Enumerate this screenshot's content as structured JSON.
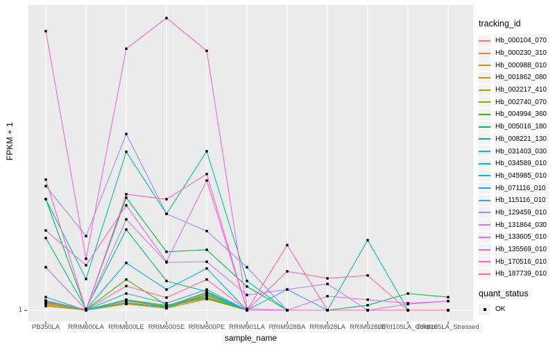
{
  "chart_data": {
    "type": "line",
    "xlabel": "sample_name",
    "ylabel": "FPKM + 1",
    "y_tick_labels": [
      "1"
    ],
    "y_axis_note": "only the value 1 is labeled; values below are relative heights 0-100 above the 1-line",
    "ylim_relative": [
      0,
      100
    ],
    "grid": "light gray panel with white gridlines (vertical per sample, horizontal at 1)",
    "legend_position": "right",
    "panel_background": "#EBEBEB",
    "gridline_color": "#FFFFFF",
    "marker": "small black square",
    "categories": [
      "PB350LA",
      "RRIM600LA",
      "RRIM600LE",
      "RRIM600SE",
      "RRIM600PE",
      "RRIM901LA",
      "RRIM928BA",
      "RRIM928LA",
      "RRIM928LE",
      "RRII105LA_Control",
      "RRII105LA_Stressed"
    ],
    "legend": {
      "tracking_title": "tracking_id",
      "quant_title": "quant_status",
      "quant_items": [
        "OK"
      ]
    },
    "series": [
      {
        "name": "Hb_000104_070",
        "color": "#F8766D",
        "values": [
          2.4,
          0,
          3.1,
          1.2,
          4.0,
          0,
          0,
          0,
          0,
          0,
          0
        ]
      },
      {
        "name": "Hb_000230_310",
        "color": "#E88526",
        "values": [
          2.6,
          0.2,
          2.6,
          1.0,
          5.5,
          0,
          0,
          0,
          0,
          0,
          0
        ]
      },
      {
        "name": "Hb_000988_010",
        "color": "#D89000",
        "values": [
          1.7,
          0,
          2.1,
          0.7,
          5.0,
          0,
          0,
          0,
          0,
          0,
          0
        ]
      },
      {
        "name": "Hb_001862_080",
        "color": "#C09B00",
        "values": [
          2.1,
          0.2,
          3.3,
          1.4,
          6.2,
          0,
          0,
          0,
          0,
          0,
          0
        ]
      },
      {
        "name": "Hb_002217_410",
        "color": "#A3A500",
        "values": [
          1.4,
          0,
          2.4,
          0.7,
          3.8,
          0,
          0,
          0,
          0,
          0,
          0
        ]
      },
      {
        "name": "Hb_002740_070",
        "color": "#7CAE00",
        "values": [
          3.1,
          0.2,
          3.6,
          1.7,
          4.5,
          0,
          0,
          0,
          0,
          0,
          0
        ]
      },
      {
        "name": "Hb_004994_360",
        "color": "#39B600",
        "values": [
          3.1,
          0.2,
          10.5,
          1.7,
          4.3,
          0,
          0,
          0,
          0,
          0,
          0
        ]
      },
      {
        "name": "Hb_005016_180",
        "color": "#00BB4E",
        "values": [
          38.0,
          0.2,
          38.5,
          20.0,
          20.7,
          8.1,
          0,
          0,
          1.7,
          5.7,
          4.5
        ]
      },
      {
        "name": "Hb_008221_130",
        "color": "#00BF7D",
        "values": [
          24.7,
          0.5,
          27.6,
          10.0,
          6.4,
          0,
          0,
          0,
          0,
          0,
          0
        ]
      },
      {
        "name": "Hb_031403_030",
        "color": "#00C1A3",
        "values": [
          38.0,
          10.7,
          54.2,
          33.0,
          54.4,
          10.0,
          0,
          0,
          24.0,
          0,
          0
        ]
      },
      {
        "name": "Hb_034589_010",
        "color": "#00BFC4",
        "values": [
          4.5,
          0,
          3.6,
          1.2,
          5.9,
          0,
          0,
          0,
          0,
          0,
          0
        ]
      },
      {
        "name": "Hb_045985_010",
        "color": "#00BAE0",
        "values": [
          2.9,
          0,
          2.6,
          1.0,
          5.2,
          0,
          0,
          0,
          0,
          0,
          0
        ]
      },
      {
        "name": "Hb_071116_010",
        "color": "#00B0F6",
        "values": [
          3.3,
          0.2,
          16.2,
          7.1,
          14.3,
          0,
          0,
          0,
          0,
          0,
          0
        ]
      },
      {
        "name": "Hb_115116_010",
        "color": "#35A2FF",
        "values": [
          14.7,
          0.2,
          5.7,
          2.4,
          7.1,
          0,
          7.1,
          0,
          0,
          0,
          0
        ]
      },
      {
        "name": "Hb_129459_010",
        "color": "#9590FF",
        "values": [
          42.5,
          25.4,
          60.3,
          33.0,
          27.1,
          14.7,
          0,
          0,
          0,
          0,
          0
        ]
      },
      {
        "name": "Hb_131864_030",
        "color": "#C77CFF",
        "values": [
          14.7,
          0.2,
          31.1,
          16.4,
          16.6,
          5.2,
          7.1,
          9.0,
          0,
          2.1,
          3.1
        ]
      },
      {
        "name": "Hb_133605_010",
        "color": "#E76BF3",
        "values": [
          27.3,
          15.4,
          35.9,
          16.6,
          44.4,
          0,
          0,
          4.8,
          3.6,
          2.4,
          3.1
        ]
      },
      {
        "name": "Hb_135569_010",
        "color": "#FA62DB",
        "values": [
          95.5,
          17.6,
          89.5,
          100,
          88.8,
          0.5,
          0,
          0,
          0,
          0,
          0
        ]
      },
      {
        "name": "Hb_170516_010",
        "color": "#FF61C3",
        "values": [
          44.7,
          0,
          39.7,
          38.0,
          46.6,
          0,
          22.3,
          0,
          0,
          0,
          0
        ]
      },
      {
        "name": "Hb_187739_010",
        "color": "#FF6A98",
        "values": [
          3.3,
          0.2,
          8.3,
          4.3,
          10.5,
          0,
          13.3,
          10.9,
          11.9,
          0,
          0
        ]
      }
    ]
  }
}
